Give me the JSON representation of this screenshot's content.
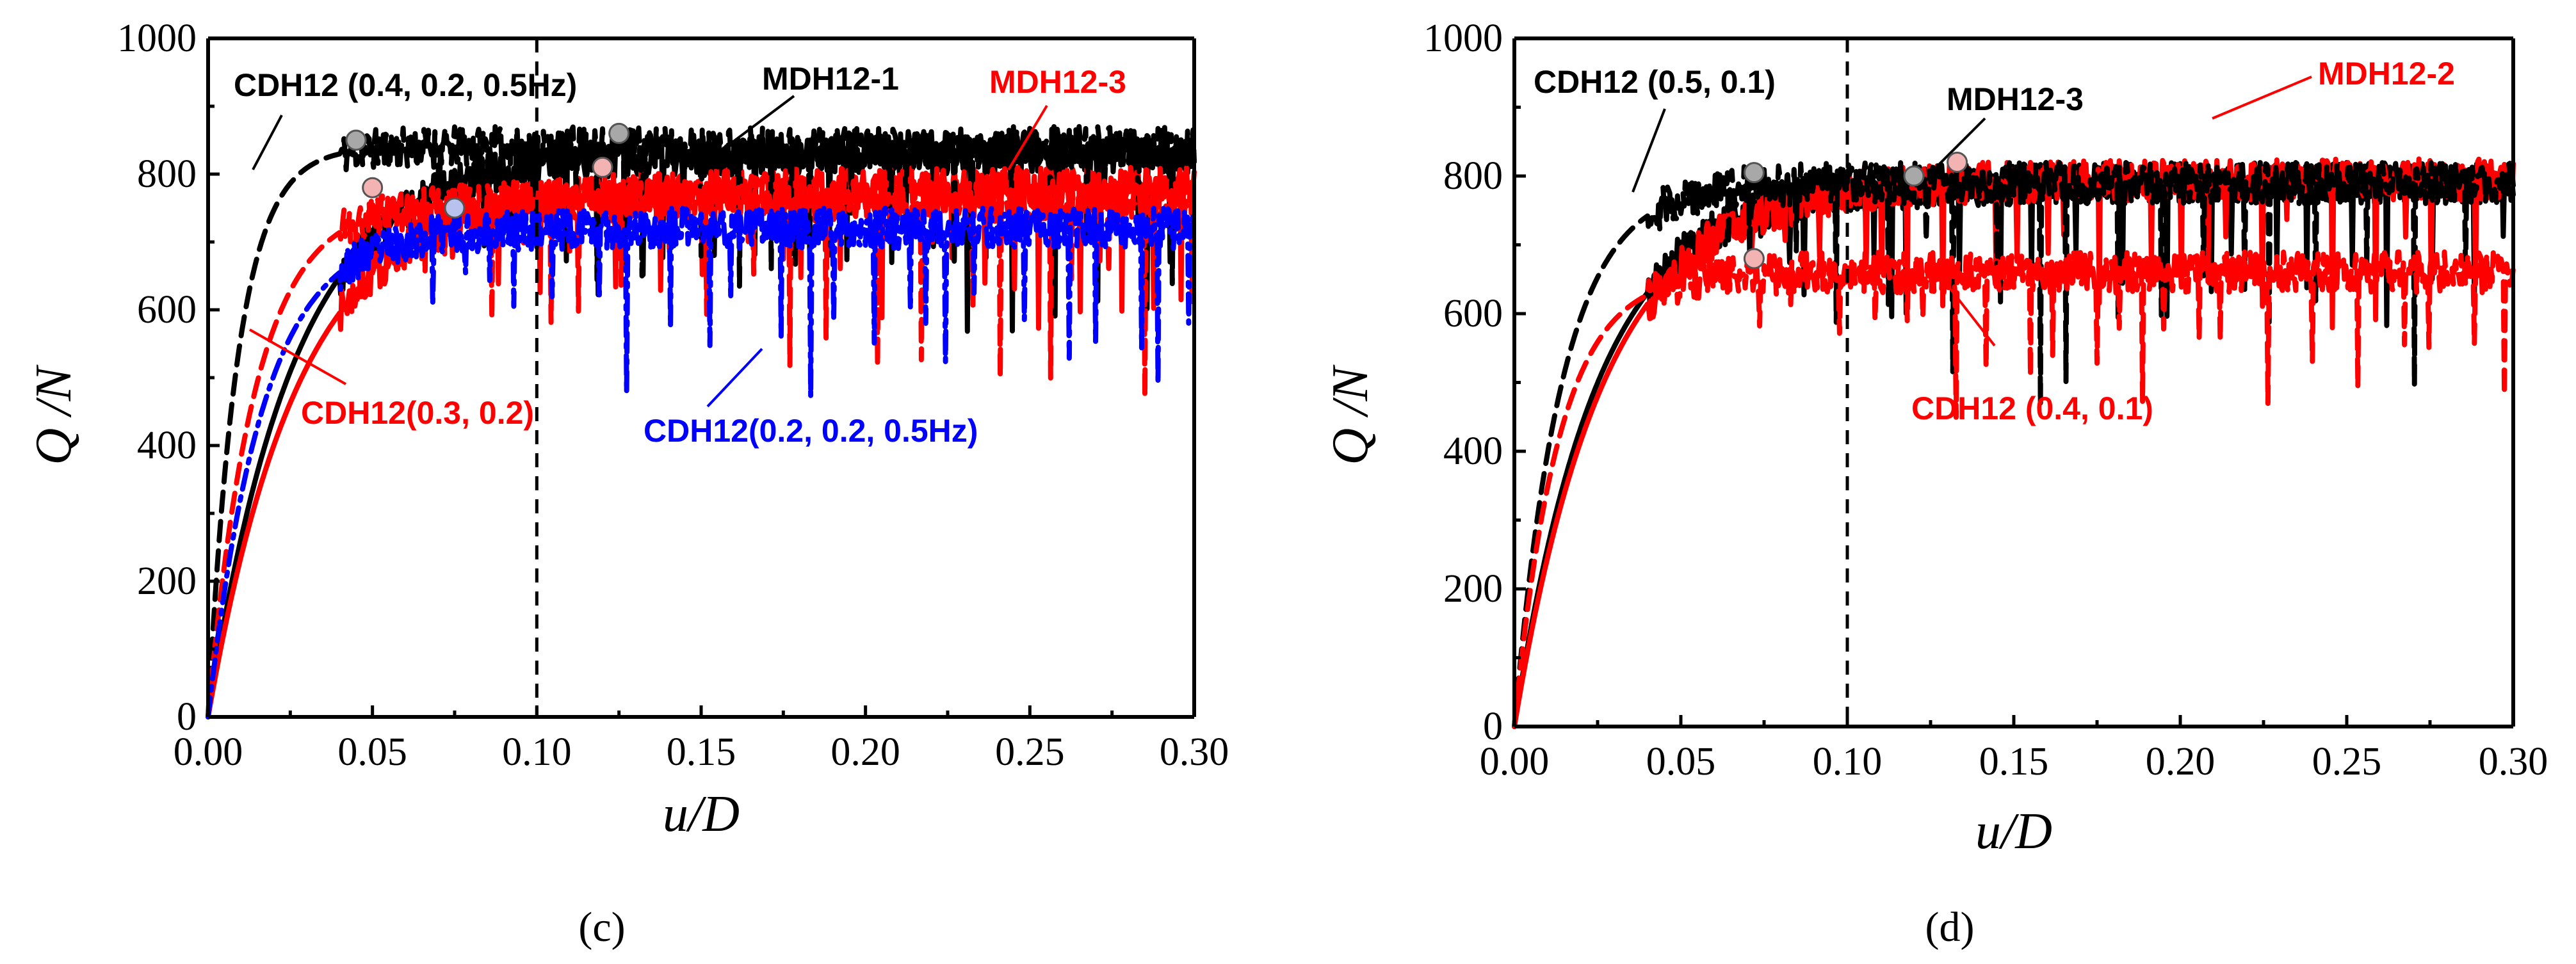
{
  "chart_data": [
    {
      "type": "line",
      "panel_label": "(c)",
      "xlabel": "u/D",
      "ylabel": "Q /N",
      "xlim": [
        0,
        0.3
      ],
      "ylim": [
        0,
        1000
      ],
      "xticks": [
        "0.00",
        "0.05",
        "0.10",
        "0.15",
        "0.20",
        "0.25",
        "0.30"
      ],
      "yticks": [
        "0",
        "200",
        "400",
        "600",
        "800",
        "1000"
      ],
      "reference_line_x": 0.1,
      "series": [
        {
          "name": "MDH12-1",
          "color": "#000000",
          "style": "solid",
          "plateau": 830,
          "x_peak": 0.125,
          "y_peak": 860,
          "dip_amp": 260,
          "ramp_k": 38,
          "seed": 3
        },
        {
          "name": "MDH12-3",
          "color": "#ff0000",
          "style": "solid",
          "plateau": 780,
          "x_peak": 0.05,
          "y_peak": 780,
          "dip_amp": 200,
          "ramp_k": 36,
          "seed": 7
        },
        {
          "name": "CDH12 (0.4, 0.2, 0.5Hz)",
          "color": "#000000",
          "style": "dash",
          "plateau": 840,
          "x_peak": 0.045,
          "y_peak": 850,
          "dip_amp": 220,
          "ramp_k": 110,
          "seed": 11
        },
        {
          "name": "CDH12(0.3, 0.2)",
          "color": "#ff0000",
          "style": "dash",
          "plateau": 760,
          "x_peak": 0.12,
          "y_peak": 810,
          "dip_amp": 280,
          "ramp_k": 70,
          "seed": 19
        },
        {
          "name": "CDH12(0.2, 0.2, 0.5Hz)",
          "color": "#0000ff",
          "style": "dashdot",
          "plateau": 720,
          "x_peak": 0.075,
          "y_peak": 750,
          "dip_amp": 230,
          "ramp_k": 60,
          "seed": 23
        }
      ],
      "annotations": [
        {
          "text": "CDH12 (0.4, 0.2, 0.5Hz)",
          "color": "#000000"
        },
        {
          "text": "MDH12-1",
          "color": "#000000"
        },
        {
          "text": "MDH12-3",
          "color": "#ff0000"
        },
        {
          "text": "CDH12(0.3, 0.2)",
          "color": "#ff0000"
        },
        {
          "text": "CDH12(0.2, 0.2, 0.5Hz)",
          "color": "#0000ff"
        }
      ]
    },
    {
      "type": "line",
      "panel_label": "(d)",
      "xlabel": "u/D",
      "ylabel": "Q /N",
      "xlim": [
        0,
        0.3
      ],
      "ylim": [
        0,
        1000
      ],
      "xticks": [
        "0.00",
        "0.05",
        "0.10",
        "0.15",
        "0.20",
        "0.25",
        "0.30"
      ],
      "yticks": [
        "0",
        "200",
        "400",
        "600",
        "800",
        "1000"
      ],
      "reference_line_x": 0.1,
      "series": [
        {
          "name": "MDH12-3",
          "color": "#000000",
          "style": "solid",
          "plateau": 790,
          "x_peak": 0.12,
          "y_peak": 800,
          "dip_amp": 230,
          "ramp_k": 40,
          "seed": 5
        },
        {
          "name": "MDH12-2",
          "color": "#ff0000",
          "style": "solid",
          "plateau": 795,
          "x_peak": 0.133,
          "y_peak": 820,
          "dip_amp": 200,
          "ramp_k": 37,
          "seed": 13
        },
        {
          "name": "CDH12 (0.5, 0.1)",
          "color": "#000000",
          "style": "dash",
          "plateau": 790,
          "x_peak": 0.072,
          "y_peak": 805,
          "dip_amp": 300,
          "ramp_k": 70,
          "seed": 29
        },
        {
          "name": "CDH12 (0.4, 0.1)",
          "color": "#ff0000",
          "style": "dash",
          "plateau": 660,
          "x_peak": 0.072,
          "y_peak": 680,
          "dip_amp": 200,
          "ramp_k": 75,
          "seed": 31
        }
      ],
      "annotations": [
        {
          "text": "CDH12 (0.5, 0.1)",
          "color": "#000000"
        },
        {
          "text": "MDH12-3",
          "color": "#000000"
        },
        {
          "text": "MDH12-2",
          "color": "#ff0000"
        },
        {
          "text": "CDH12 (0.4, 0.1)",
          "color": "#ff0000"
        }
      ]
    }
  ]
}
